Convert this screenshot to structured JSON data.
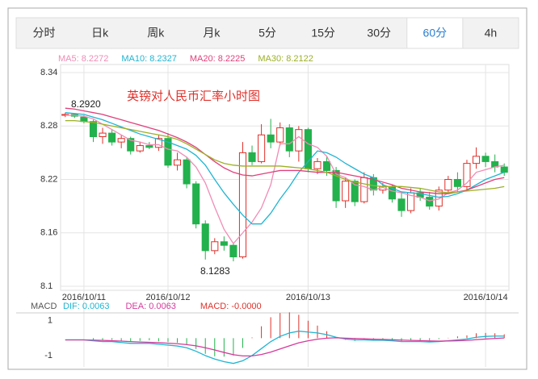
{
  "tabs": [
    "分时",
    "日k",
    "周k",
    "月k",
    "5分",
    "15分",
    "30分",
    "60分",
    "4h"
  ],
  "selected_tab": 7,
  "chart_data": {
    "type": "candlestick",
    "title": "英镑对人民币汇率小时图",
    "categories": [
      null,
      null,
      "2016/10/11",
      null,
      null,
      null,
      null,
      null,
      null,
      null,
      null,
      "2016/10/12",
      null,
      null,
      null,
      null,
      null,
      null,
      null,
      null,
      null,
      null,
      null,
      null,
      null,
      null,
      "2016/10/13",
      null,
      null,
      null,
      null,
      null,
      null,
      null,
      null,
      null,
      null,
      null,
      null,
      null,
      null,
      null,
      null,
      null,
      null,
      "2016/10/14",
      null,
      null
    ],
    "ylim": [
      8.1,
      8.34
    ],
    "yticks": [
      8.34,
      8.28,
      8.22,
      8.16,
      8.1
    ],
    "grid": true,
    "up_color": "#e0302a",
    "down_color": "#22b14c",
    "annotations": [
      "8.2920",
      "8.1283"
    ],
    "candles": [
      {
        "open": 8.292,
        "close": 8.293,
        "high": 8.295,
        "low": 8.29
      },
      {
        "open": 8.293,
        "close": 8.291,
        "high": 8.294,
        "low": 8.289
      },
      {
        "open": 8.29,
        "close": 8.285,
        "high": 8.292,
        "low": 8.283
      },
      {
        "open": 8.285,
        "close": 8.268,
        "high": 8.287,
        "low": 8.262
      },
      {
        "open": 8.268,
        "close": 8.272,
        "high": 8.278,
        "low": 8.26
      },
      {
        "open": 8.272,
        "close": 8.262,
        "high": 8.276,
        "low": 8.258
      },
      {
        "open": 8.262,
        "close": 8.266,
        "high": 8.27,
        "low": 8.255
      },
      {
        "open": 8.266,
        "close": 8.252,
        "high": 8.268,
        "low": 8.248
      },
      {
        "open": 8.252,
        "close": 8.258,
        "high": 8.262,
        "low": 8.25
      },
      {
        "open": 8.258,
        "close": 8.256,
        "high": 8.262,
        "low": 8.254
      },
      {
        "open": 8.256,
        "close": 8.266,
        "high": 8.27,
        "low": 8.252
      },
      {
        "open": 8.266,
        "close": 8.236,
        "high": 8.272,
        "low": 8.233
      },
      {
        "open": 8.236,
        "close": 8.242,
        "high": 8.25,
        "low": 8.23
      },
      {
        "open": 8.242,
        "close": 8.215,
        "high": 8.245,
        "low": 8.21
      },
      {
        "open": 8.215,
        "close": 8.17,
        "high": 8.218,
        "low": 8.165
      },
      {
        "open": 8.17,
        "close": 8.14,
        "high": 8.174,
        "low": 8.13
      },
      {
        "open": 8.14,
        "close": 8.15,
        "high": 8.154,
        "low": 8.136
      },
      {
        "open": 8.15,
        "close": 8.146,
        "high": 8.156,
        "low": 8.14
      },
      {
        "open": 8.146,
        "close": 8.133,
        "high": 8.148,
        "low": 8.128
      },
      {
        "open": 8.133,
        "close": 8.25,
        "high": 8.262,
        "low": 8.131
      },
      {
        "open": 8.25,
        "close": 8.24,
        "high": 8.258,
        "low": 8.236
      },
      {
        "open": 8.24,
        "close": 8.27,
        "high": 8.282,
        "low": 8.238
      },
      {
        "open": 8.27,
        "close": 8.262,
        "high": 8.288,
        "low": 8.255
      },
      {
        "open": 8.262,
        "close": 8.278,
        "high": 8.284,
        "low": 8.258
      },
      {
        "open": 8.278,
        "close": 8.252,
        "high": 8.282,
        "low": 8.245
      },
      {
        "open": 8.252,
        "close": 8.276,
        "high": 8.28,
        "low": 8.24
      },
      {
        "open": 8.276,
        "close": 8.232,
        "high": 8.278,
        "low": 8.228
      },
      {
        "open": 8.232,
        "close": 8.24,
        "high": 8.244,
        "low": 8.226
      },
      {
        "open": 8.24,
        "close": 8.23,
        "high": 8.246,
        "low": 8.224
      },
      {
        "open": 8.23,
        "close": 8.196,
        "high": 8.234,
        "low": 8.188
      },
      {
        "open": 8.196,
        "close": 8.218,
        "high": 8.222,
        "low": 8.188
      },
      {
        "open": 8.218,
        "close": 8.195,
        "high": 8.22,
        "low": 8.19
      },
      {
        "open": 8.195,
        "close": 8.222,
        "high": 8.228,
        "low": 8.193
      },
      {
        "open": 8.222,
        "close": 8.208,
        "high": 8.226,
        "low": 8.202
      },
      {
        "open": 8.208,
        "close": 8.212,
        "high": 8.216,
        "low": 8.204
      },
      {
        "open": 8.212,
        "close": 8.198,
        "high": 8.214,
        "low": 8.194
      },
      {
        "open": 8.198,
        "close": 8.185,
        "high": 8.205,
        "low": 8.178
      },
      {
        "open": 8.185,
        "close": 8.205,
        "high": 8.21,
        "low": 8.182
      },
      {
        "open": 8.205,
        "close": 8.2,
        "high": 8.21,
        "low": 8.196
      },
      {
        "open": 8.2,
        "close": 8.19,
        "high": 8.206,
        "low": 8.186
      },
      {
        "open": 8.19,
        "close": 8.208,
        "high": 8.212,
        "low": 8.185
      },
      {
        "open": 8.208,
        "close": 8.22,
        "high": 8.224,
        "low": 8.204
      },
      {
        "open": 8.22,
        "close": 8.212,
        "high": 8.228,
        "low": 8.206
      },
      {
        "open": 8.212,
        "close": 8.238,
        "high": 8.242,
        "low": 8.208
      },
      {
        "open": 8.238,
        "close": 8.246,
        "high": 8.256,
        "low": 8.232
      },
      {
        "open": 8.246,
        "close": 8.24,
        "high": 8.25,
        "low": 8.234
      },
      {
        "open": 8.24,
        "close": 8.234,
        "high": 8.248,
        "low": 8.228
      },
      {
        "open": 8.234,
        "close": 8.228,
        "high": 8.238,
        "low": 8.224
      }
    ],
    "series": [
      {
        "name": "MA5: 8.2272",
        "color": "#f08cb4",
        "values": [
          8.292,
          8.292,
          8.291,
          8.288,
          8.282,
          8.276,
          8.27,
          8.264,
          8.262,
          8.259,
          8.259,
          8.254,
          8.252,
          8.245,
          8.234,
          8.216,
          8.189,
          8.164,
          8.148,
          8.16,
          8.172,
          8.188,
          8.214,
          8.26,
          8.26,
          8.268,
          8.26,
          8.256,
          8.246,
          8.226,
          8.222,
          8.214,
          8.212,
          8.208,
          8.211,
          8.207,
          8.205,
          8.202,
          8.2,
          8.196,
          8.198,
          8.205,
          8.208,
          8.216,
          8.228,
          8.231,
          8.234,
          8.236
        ]
      },
      {
        "name": "MA10: 8.2327",
        "color": "#1fb5d2",
        "values": [
          8.295,
          8.294,
          8.293,
          8.29,
          8.287,
          8.283,
          8.279,
          8.275,
          8.271,
          8.268,
          8.265,
          8.262,
          8.258,
          8.254,
          8.247,
          8.236,
          8.22,
          8.205,
          8.192,
          8.18,
          8.17,
          8.17,
          8.182,
          8.198,
          8.212,
          8.228,
          8.24,
          8.252,
          8.25,
          8.245,
          8.238,
          8.232,
          8.226,
          8.222,
          8.214,
          8.21,
          8.206,
          8.205,
          8.204,
          8.202,
          8.2,
          8.201,
          8.204,
          8.208,
          8.214,
          8.22,
          8.224,
          8.228
        ]
      },
      {
        "name": "MA20: 8.2225",
        "color": "#e0407a",
        "values": [
          8.3,
          8.299,
          8.297,
          8.295,
          8.293,
          8.29,
          8.287,
          8.284,
          8.281,
          8.278,
          8.275,
          8.271,
          8.267,
          8.262,
          8.256,
          8.248,
          8.24,
          8.233,
          8.228,
          8.225,
          8.224,
          8.226,
          8.228,
          8.23,
          8.23,
          8.23,
          8.229,
          8.228,
          8.228,
          8.228,
          8.226,
          8.224,
          8.222,
          8.22,
          8.217,
          8.214,
          8.21,
          8.208,
          8.206,
          8.205,
          8.204,
          8.204,
          8.206,
          8.208,
          8.212,
          8.216,
          8.22,
          8.222
        ]
      },
      {
        "name": "MA30: 8.2122",
        "color": "#9cb025",
        "values": [
          8.286,
          8.286,
          8.285,
          8.284,
          8.282,
          8.28,
          8.278,
          8.276,
          8.274,
          8.272,
          8.27,
          8.268,
          8.265,
          8.26,
          8.254,
          8.248,
          8.242,
          8.238,
          8.236,
          8.235,
          8.235,
          8.235,
          8.235,
          8.235,
          8.234,
          8.233,
          8.232,
          8.23,
          8.228,
          8.224,
          8.22,
          8.217,
          8.215,
          8.213,
          8.212,
          8.212,
          8.212,
          8.211,
          8.21,
          8.208,
          8.206,
          8.205,
          8.206,
          8.207,
          8.208,
          8.209,
          8.21,
          8.212
        ]
      }
    ],
    "macd": {
      "title": "MACD",
      "ylim": [
        -1.65,
        1.45
      ],
      "yticks": [
        1,
        -1
      ],
      "series": [
        {
          "name": "DIF: 0.0063",
          "color": "#1fb5d2",
          "values": [
            -0.1,
            -0.1,
            -0.1,
            -0.15,
            -0.2,
            -0.2,
            -0.25,
            -0.3,
            -0.3,
            -0.3,
            -0.35,
            -0.4,
            -0.45,
            -0.55,
            -0.75,
            -1.0,
            -1.2,
            -1.35,
            -1.45,
            -1.3,
            -1.0,
            -0.6,
            -0.2,
            0.1,
            0.3,
            0.4,
            0.35,
            0.3,
            0.2,
            0.05,
            -0.05,
            -0.1,
            -0.1,
            -0.12,
            -0.12,
            -0.15,
            -0.2,
            -0.2,
            -0.2,
            -0.22,
            -0.2,
            -0.15,
            -0.1,
            -0.05,
            0.05,
            0.1,
            0.12,
            0.12
          ]
        },
        {
          "name": "DEA: 0.0063",
          "color": "#d63a9c",
          "values": [
            -0.1,
            -0.1,
            -0.1,
            -0.11,
            -0.13,
            -0.15,
            -0.17,
            -0.2,
            -0.22,
            -0.24,
            -0.26,
            -0.29,
            -0.32,
            -0.37,
            -0.44,
            -0.55,
            -0.68,
            -0.82,
            -0.95,
            -1.02,
            -1.02,
            -0.94,
            -0.8,
            -0.62,
            -0.44,
            -0.27,
            -0.15,
            -0.06,
            0.0,
            0.02,
            0.0,
            -0.02,
            -0.04,
            -0.06,
            -0.07,
            -0.09,
            -0.11,
            -0.13,
            -0.14,
            -0.16,
            -0.17,
            -0.16,
            -0.15,
            -0.13,
            -0.09,
            -0.05,
            -0.02,
            0.01
          ]
        }
      ],
      "histogram": {
        "name": "MACD: -0.0000",
        "color": "#e0302a",
        "values": [
          0,
          0,
          0,
          -0.08,
          -0.14,
          -0.1,
          -0.16,
          -0.2,
          -0.16,
          -0.12,
          -0.18,
          -0.22,
          -0.26,
          -0.36,
          -0.62,
          -0.9,
          -1.04,
          -1.06,
          -1.0,
          -0.56,
          0.04,
          0.68,
          1.2,
          1.44,
          1.48,
          1.34,
          1.0,
          0.72,
          0.4,
          0.06,
          -0.1,
          -0.16,
          -0.12,
          -0.12,
          -0.1,
          -0.12,
          -0.18,
          -0.14,
          -0.12,
          -0.12,
          -0.06,
          0.02,
          0.1,
          0.16,
          0.28,
          0.3,
          0.28,
          0.22
        ]
      }
    }
  }
}
